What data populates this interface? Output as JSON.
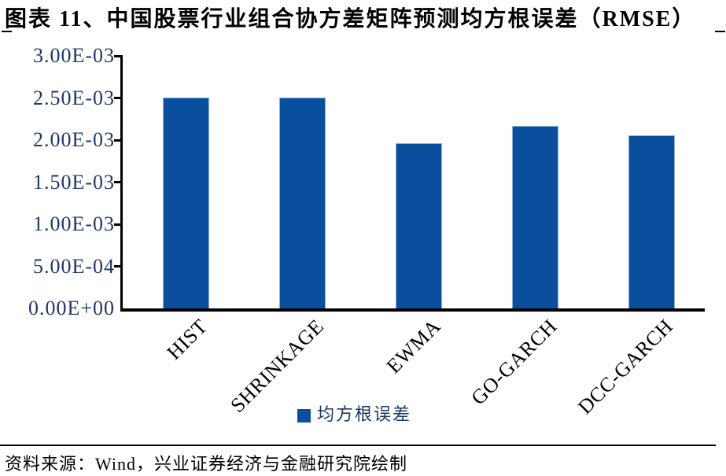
{
  "header": {
    "title": "图表 11、中国股票行业组合协方差矩阵预测均方根误差（RMSE）"
  },
  "chart_data": {
    "type": "bar",
    "title": "中国股票行业组合协方差矩阵预测均方根误差（RMSE）",
    "categories": [
      "HIST",
      "SHRINKAGE",
      "EWMA",
      "GO-GARCH",
      "DCC-GARCH"
    ],
    "series": [
      {
        "name": "均方根误差",
        "values": [
          0.0025,
          0.0025,
          0.00196,
          0.00217,
          0.00206
        ]
      }
    ],
    "ylim": [
      0,
      0.003
    ],
    "ytick_step": 0.0005,
    "ytick_labels": [
      "0.00E+00",
      "5.00E-04",
      "1.00E-03",
      "1.50E-03",
      "2.00E-03",
      "2.50E-03",
      "3.00E-03"
    ],
    "xlabel": "",
    "ylabel": "",
    "grid": false,
    "legend_position": "bottom",
    "bar_color": "#0A4F9E"
  },
  "legend": {
    "label": "均方根误差",
    "marker_color": "#0A4F9E"
  },
  "footer": {
    "source": "资料来源：Wind，兴业证券经济与金融研究院绘制"
  },
  "colors": {
    "bar": "#0A4F9E",
    "bar_edge": "#8FAFD4",
    "axis": "#000000",
    "y_label_text": "#1F3864",
    "title_text": "#000000"
  }
}
